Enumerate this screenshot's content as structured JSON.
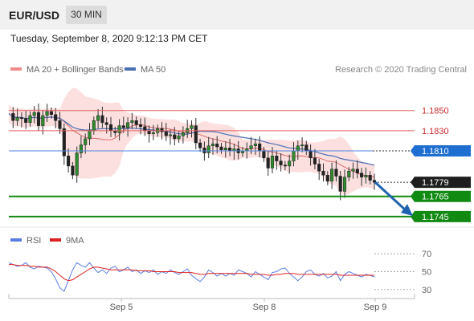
{
  "header": {
    "pair": "EUR/USD",
    "timeframe": "30 MIN"
  },
  "datetime": "Tuesday, September 8, 2020 9:12:13 PM CET",
  "legend": {
    "ma20_bb": "MA 20 + Bollinger Bands",
    "ma50": "MA 50",
    "copyright": "Research © 2020 Trading Central"
  },
  "rsi_legend": {
    "rsi": "RSI",
    "ma9": "9MA"
  },
  "colors": {
    "bollinger": "#f9c6c6",
    "ma20": "#d96a6a",
    "ma50": "#4a6fb3",
    "support": "#118a11",
    "resistance": "#e06060",
    "pivot": "#4c86e0",
    "rsi": "#5a7ee0",
    "rsi_ma": "#e02020",
    "arrow": "#1f63b0"
  },
  "chart_data": [
    {
      "type": "candlestick",
      "title": "",
      "x_labels": [
        "Sep 5",
        "Sep 8",
        "Sep 9"
      ],
      "ylim": [
        1.1733,
        1.1868
      ],
      "levels": [
        {
          "label": "1.1850",
          "value": 1.185,
          "kind": "resistance"
        },
        {
          "label": "1.1830",
          "value": 1.183,
          "kind": "resistance"
        },
        {
          "label": "1.1810",
          "value": 1.181,
          "kind": "pivot"
        },
        {
          "label": "1.1779",
          "value": 1.1779,
          "kind": "last"
        },
        {
          "label": "1.1765",
          "value": 1.1765,
          "kind": "support"
        },
        {
          "label": "1.1745",
          "value": 1.1745,
          "kind": "support"
        }
      ],
      "price_path": [
        1.1847,
        1.184,
        1.1843,
        1.1842,
        1.1838,
        1.1845,
        1.1848,
        1.1835,
        1.1845,
        1.1849,
        1.1846,
        1.184,
        1.1832,
        1.1805,
        1.1795,
        1.1786,
        1.1808,
        1.1816,
        1.1822,
        1.183,
        1.184,
        1.1845,
        1.1838,
        1.1836,
        1.183,
        1.1828,
        1.1835,
        1.1833,
        1.1838,
        1.184,
        1.1836,
        1.1834,
        1.183,
        1.1827,
        1.1828,
        1.1832,
        1.1829,
        1.1825,
        1.1826,
        1.1822,
        1.1825,
        1.1828,
        1.1832,
        1.1835,
        1.1818,
        1.1813,
        1.1808,
        1.1815,
        1.1817,
        1.1814,
        1.1811,
        1.1813,
        1.181,
        1.1812,
        1.1808,
        1.181,
        1.1812,
        1.1815,
        1.1817,
        1.181,
        1.1803,
        1.1793,
        1.1805,
        1.18,
        1.1796,
        1.1795,
        1.18,
        1.181,
        1.1815,
        1.1816,
        1.181,
        1.1803,
        1.1797,
        1.179,
        1.1786,
        1.178,
        1.1792,
        1.1785,
        1.177,
        1.1784,
        1.179,
        1.1792,
        1.1788,
        1.1784,
        1.1786,
        1.1781,
        1.1779
      ]
    },
    {
      "type": "line",
      "title": "RSI",
      "x_labels": [
        "Sep 5",
        "Sep 8",
        "Sep 9"
      ],
      "ylim": [
        20,
        80
      ],
      "yticks": [
        70,
        50,
        30
      ],
      "rsi": [
        60,
        58,
        56,
        57,
        60,
        55,
        53,
        56,
        55,
        54,
        50,
        42,
        32,
        28,
        40,
        52,
        60,
        57,
        55,
        60,
        54,
        49,
        52,
        48,
        54,
        56,
        50,
        52,
        55,
        50,
        52,
        48,
        51,
        49,
        52,
        47,
        50,
        48,
        52,
        49,
        47,
        50,
        53,
        46,
        42,
        39,
        44,
        52,
        49,
        45,
        48,
        45,
        48,
        46,
        52,
        50,
        48,
        44,
        50,
        47,
        44,
        41,
        49,
        50,
        53,
        54,
        48,
        44,
        40,
        44,
        50,
        52,
        47,
        45,
        48,
        43,
        45,
        50,
        40,
        47,
        50,
        48,
        46,
        44,
        47,
        46,
        44
      ],
      "rsi_ma": [
        58,
        58,
        57,
        57,
        57,
        56,
        56,
        55,
        55,
        55,
        53,
        50,
        46,
        42,
        40,
        41,
        44,
        47,
        50,
        53,
        55,
        55,
        54,
        53,
        52,
        52,
        52,
        52,
        52,
        52,
        51,
        51,
        51,
        51,
        50,
        50,
        50,
        50,
        50,
        50,
        49,
        49,
        49,
        49,
        48,
        47,
        47,
        48,
        48,
        48,
        48,
        48,
        48,
        48,
        48,
        48,
        48,
        47,
        47,
        47,
        47,
        46,
        46,
        47,
        47,
        48,
        48,
        48,
        47,
        47,
        47,
        47,
        47,
        47,
        47,
        47,
        47,
        47,
        46,
        46,
        46,
        46,
        46,
        46,
        46,
        46,
        46
      ]
    }
  ]
}
